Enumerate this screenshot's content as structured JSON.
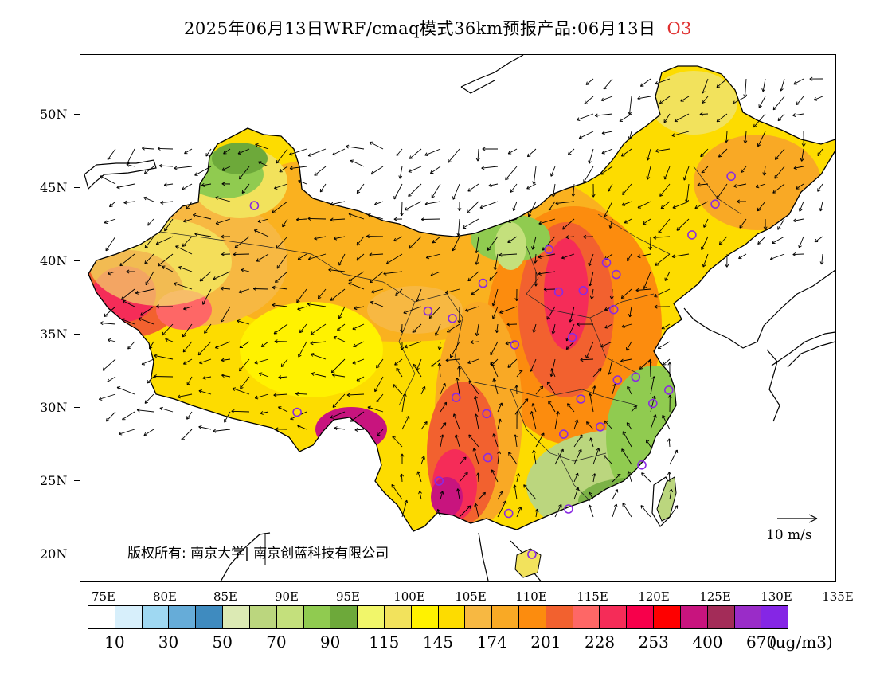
{
  "title": {
    "text": "2025年06月13日WRF/cmaq模式36km预报产品:06月13日",
    "species": "O3"
  },
  "map": {
    "type": "pollutant-concentration-map",
    "region": "China",
    "pollutant": "O3",
    "y_axis_labels": [
      "50N",
      "45N",
      "40N",
      "35N",
      "30N",
      "25N",
      "20N"
    ],
    "x_axis_labels": [
      "75E",
      "80E",
      "85E",
      "90E",
      "95E",
      "100E",
      "105E",
      "110E",
      "115E",
      "120E",
      "125E",
      "130E",
      "135E"
    ],
    "has_wind_vectors": true,
    "has_station_markers": true
  },
  "copyright": "版权所有: 南京大学| 南京创蓝科技有限公司",
  "wind_reference": "10 m/s",
  "colorbar": {
    "colors": [
      "#ffffff",
      "#d7effb",
      "#9fd8f2",
      "#66acd8",
      "#3f8bbf",
      "#dceab4",
      "#bbd67e",
      "#c4e07c",
      "#90cb50",
      "#6da93a",
      "#f1f66a",
      "#f2e25c",
      "#fff200",
      "#fddc00",
      "#f7b842",
      "#f9a925",
      "#fc8c0e",
      "#f2612f",
      "#fe6766",
      "#f52c58",
      "#f7004b",
      "#fe0000",
      "#c8147e",
      "#a32c58",
      "#9a2cc8",
      "#8526e5"
    ],
    "labels": [
      "10",
      "30",
      "50",
      "70",
      "90",
      "115",
      "145",
      "174",
      "201",
      "228",
      "253",
      "400",
      "670"
    ],
    "unit": "(ug/m3)"
  },
  "station_markers": [
    "87.6E 43.8N",
    "91.1E 29.7N",
    "101.8E 36.6N",
    "103.8E 36.1N",
    "106.3E 38.5N",
    "104.1E 30.7N",
    "106.6E 29.6N",
    "102.7E 25.0N",
    "106.7E 26.6N",
    "108.4E 22.8N",
    "110.3E 20.0N",
    "113.3E 23.1N",
    "112.9E 28.2N",
    "114.3E 30.6N",
    "115.9E 28.7N",
    "117.3E 31.9N",
    "118.8E 32.1N",
    "120.2E 30.3N",
    "121.5E 31.2N",
    "119.3E 26.1N",
    "113.6E 34.8N",
    "108.9E 34.3N",
    "112.5E 37.9N",
    "114.5E 38.0N",
    "117.0E 36.7N",
    "117.2E 39.1N",
    "116.4E 39.9N",
    "111.7E 40.8N",
    "123.4E 41.8N",
    "125.3E 43.9N",
    "126.6E 45.8N"
  ]
}
